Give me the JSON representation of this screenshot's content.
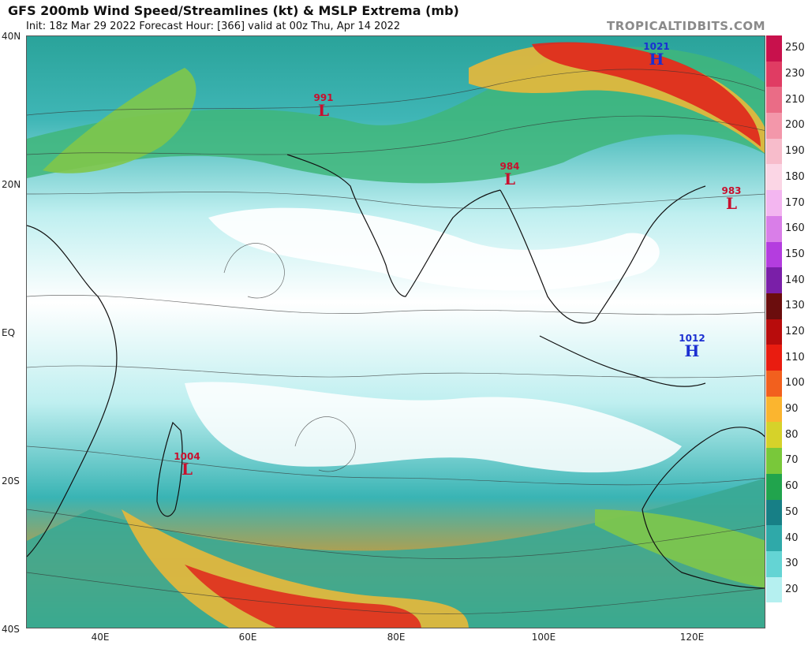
{
  "header": {
    "title": "GFS 200mb Wind Speed/Streamlines (kt) & MSLP Extrema (mb)",
    "subtitle": "Init: 18z Mar 29 2022   Forecast Hour: [366]   valid at 00z Thu, Apr 14 2022",
    "brand": "TROPICALTIDBITS.COM"
  },
  "axes": {
    "lat_labels": [
      "40N",
      "20N",
      "EQ",
      "20S",
      "40S"
    ],
    "lon_labels": [
      "40E",
      "60E",
      "80E",
      "100E",
      "120E"
    ]
  },
  "colorbar": {
    "labels": [
      "250",
      "230",
      "210",
      "200",
      "190",
      "180",
      "170",
      "160",
      "150",
      "140",
      "130",
      "120",
      "110",
      "100",
      "90",
      "80",
      "70",
      "60",
      "50",
      "40",
      "30",
      "20"
    ],
    "colors": [
      "#c8114c",
      "#e03c63",
      "#ea6c86",
      "#f397aa",
      "#f7bccb",
      "#fbd6e5",
      "#f3b6f0",
      "#d97ee8",
      "#b43ddf",
      "#7a1fa8",
      "#6b0d0d",
      "#b80c0c",
      "#e91c10",
      "#f2601e",
      "#fbb52f",
      "#d6d22a",
      "#79c83a",
      "#21a44d",
      "#177f86",
      "#2fa9a9",
      "#64d4d4",
      "#b5f0f0"
    ],
    "last_color": "#ffffff"
  },
  "pressure_centers": [
    {
      "type": "H",
      "value": "1021",
      "color": "#1b2fd1"
    },
    {
      "type": "L",
      "value": "991",
      "color": "#c8102e"
    },
    {
      "type": "L",
      "value": "984",
      "color": "#c8102e"
    },
    {
      "type": "L",
      "value": "983",
      "color": "#c8102e"
    },
    {
      "type": "H",
      "value": "1012",
      "color": "#1b2fd1"
    },
    {
      "type": "L",
      "value": "1004",
      "color": "#c8102e"
    }
  ]
}
